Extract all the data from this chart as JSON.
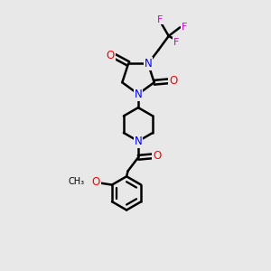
{
  "bg_color": "#e8e8e8",
  "atom_colors": {
    "N": "#0000ff",
    "O": "#ff0000",
    "F": "#cc00cc",
    "C": "#000000"
  },
  "bond_color": "#000000",
  "bond_width": 1.8,
  "fig_size": [
    3.0,
    3.0
  ],
  "dpi": 100,
  "xlim": [
    0,
    10
  ],
  "ylim": [
    0,
    10
  ]
}
